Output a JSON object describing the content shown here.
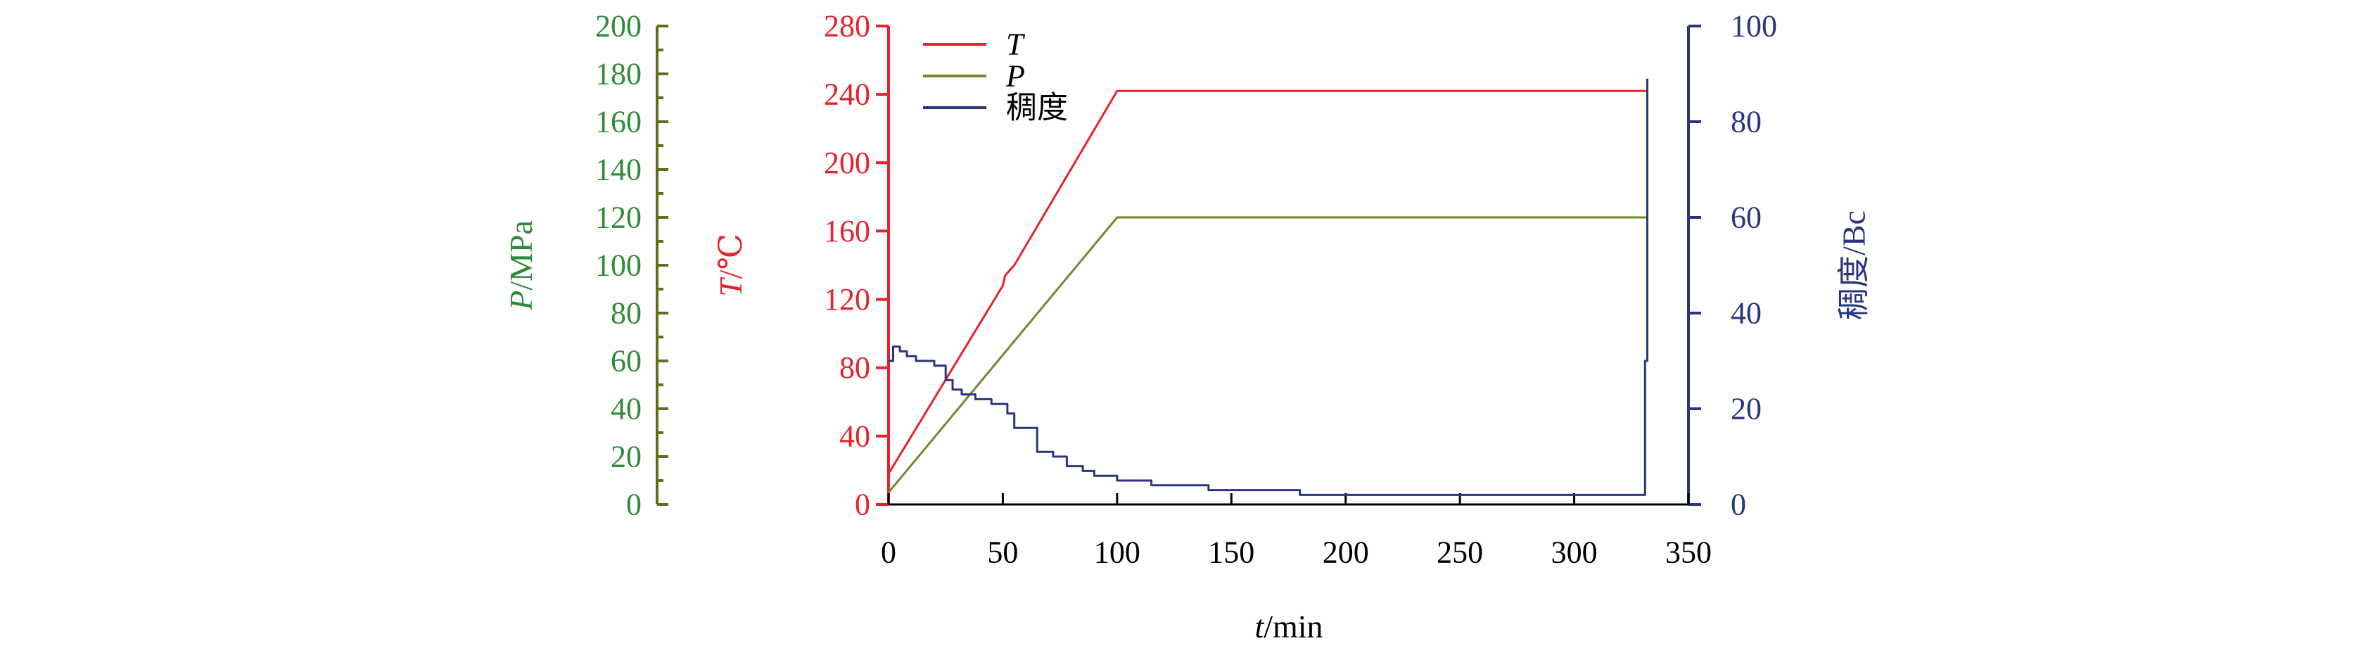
{
  "colors": {
    "T": "#e8212b",
    "P_line": "#6e8a2c",
    "P_text": "#2e8b37",
    "P_axis": "#5f7019",
    "consistency": "#2a3580",
    "black": "#000000"
  },
  "chart_data": {
    "type": "line",
    "xlabel": {
      "var": "t",
      "unit": "/min"
    },
    "xlim": [
      0,
      350
    ],
    "xticks": [
      0,
      50,
      100,
      150,
      200,
      250,
      300,
      350
    ],
    "axes": {
      "P": {
        "label_var": "P",
        "label_unit": "/MPa",
        "lim": [
          0,
          200
        ],
        "ticks": [
          0,
          20,
          40,
          60,
          80,
          100,
          120,
          140,
          160,
          180,
          200
        ]
      },
      "T": {
        "label_var": "T",
        "label_unit": "/℃",
        "lim": [
          0,
          280
        ],
        "ticks": [
          0,
          40,
          80,
          120,
          160,
          200,
          240,
          280
        ]
      },
      "consistency": {
        "label": "稠度/Bc",
        "lim": [
          0,
          100
        ],
        "ticks": [
          0,
          20,
          40,
          60,
          80,
          100
        ]
      }
    },
    "legend": {
      "position": "top-left",
      "entries": [
        {
          "key": "T",
          "label": "T",
          "italic": true
        },
        {
          "key": "P",
          "label": "P",
          "italic": true
        },
        {
          "key": "consistency",
          "label": "稠度",
          "italic": false
        }
      ]
    },
    "series": [
      {
        "key": "T",
        "axis": "T",
        "x": [
          0,
          50,
          51,
          55,
          100,
          331,
          332
        ],
        "y": [
          18,
          128,
          134,
          140,
          242,
          242,
          242
        ]
      },
      {
        "key": "P",
        "axis": "P",
        "x": [
          0,
          100,
          331,
          332
        ],
        "y": [
          5,
          120,
          120,
          120
        ]
      },
      {
        "key": "consistency",
        "axis": "consistency",
        "x": [
          0,
          2,
          5,
          8,
          12,
          16,
          20,
          25,
          28,
          32,
          38,
          45,
          52,
          55,
          60,
          65,
          72,
          78,
          85,
          90,
          100,
          115,
          130,
          140,
          150,
          160,
          175,
          180,
          200,
          250,
          300,
          328,
          330,
          331,
          332
        ],
        "y": [
          30,
          33,
          32,
          31,
          30,
          30,
          29,
          26,
          24,
          23,
          22,
          21,
          19,
          16,
          16,
          11,
          10,
          8,
          7,
          6,
          5,
          4,
          4,
          3,
          3,
          3,
          3,
          2,
          2,
          2,
          2,
          2,
          2,
          30,
          89
        ]
      }
    ]
  }
}
